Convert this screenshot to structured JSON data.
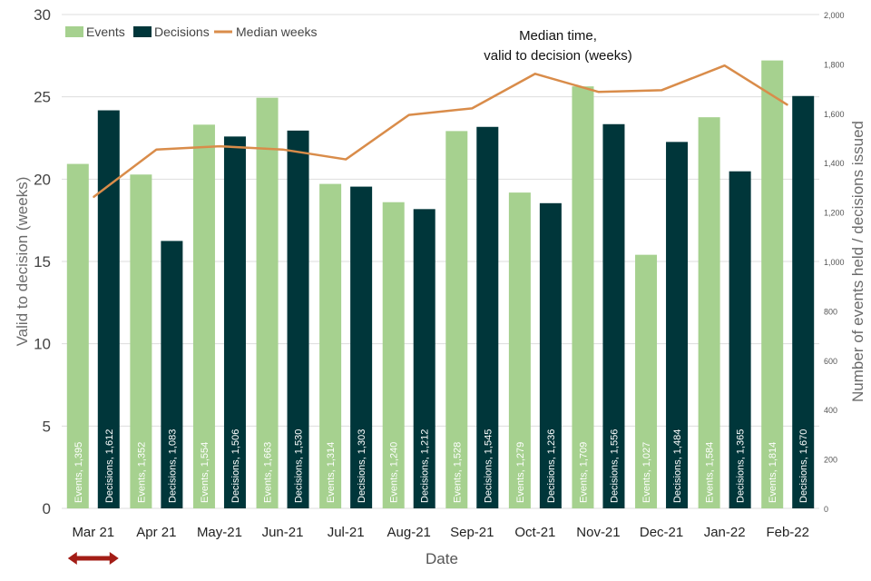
{
  "chart_data": {
    "type": "bar",
    "categories": [
      "Mar 21",
      "Apr 21",
      "May-21",
      "Jun-21",
      "Jul-21",
      "Aug-21",
      "Sep-21",
      "Oct-21",
      "Nov-21",
      "Dec-21",
      "Jan-22",
      "Feb-22"
    ],
    "series": [
      {
        "name": "Events",
        "axis": "right",
        "kind": "bar",
        "color": "#a6d18f",
        "values": [
          1395,
          1352,
          1554,
          1663,
          1314,
          1240,
          1528,
          1279,
          1709,
          1027,
          1584,
          1814
        ],
        "labels": [
          "Events, 1,395",
          "Events, 1,352",
          "Events, 1,554",
          "Events, 1,663",
          "Events, 1,314",
          "Events, 1,240",
          "Events, 1,528",
          "Events, 1,279",
          "Events, 1,709",
          "Events, 1,027",
          "Events, 1,584",
          "Events, 1,814"
        ]
      },
      {
        "name": "Decisions",
        "axis": "right",
        "kind": "bar",
        "color": "#00363a",
        "values": [
          1612,
          1083,
          1506,
          1530,
          1303,
          1212,
          1545,
          1236,
          1556,
          1484,
          1365,
          1670
        ],
        "labels": [
          "Decisions, 1,612",
          "Decisions, 1,083",
          "Decisions, 1,506",
          "Decisions, 1,530",
          "Decisions, 1,303",
          "Decisions, 1,212",
          "Decisions, 1,545",
          "Decisions, 1,236",
          "Decisions, 1,556",
          "Decisions, 1,484",
          "Decisions, 1,365",
          "Decisions, 1,670"
        ]
      },
      {
        "name": "Median weeks",
        "axis": "left",
        "kind": "line",
        "color": "#d98c4a",
        "values": [
          18.9,
          21.8,
          22,
          21.8,
          21.2,
          23.9,
          24.3,
          26.4,
          25.3,
          25.4,
          26.9,
          24.5
        ]
      }
    ],
    "xlabel": "Date",
    "ylabel_left": "Valid to decision (weeks)",
    "ylabel_right": "Number of events held / decisions issued",
    "ylim_left": [
      0,
      30
    ],
    "ylim_right": [
      0,
      2000
    ],
    "yticks_left": [
      "0",
      "5",
      "10",
      "15",
      "20",
      "25",
      "30"
    ],
    "yticks_right": [
      "0",
      "200",
      "400",
      "600",
      "800",
      "1,000",
      "1,200",
      "1,400",
      "1,600",
      "1,800",
      "2,000"
    ],
    "annotation": [
      "Median time,",
      "valid to decision (weeks)"
    ],
    "legend_position": "top-left",
    "marker": {
      "type": "double-arrow",
      "category": "Mar 21",
      "color": "#a31d16"
    },
    "grid": true
  }
}
